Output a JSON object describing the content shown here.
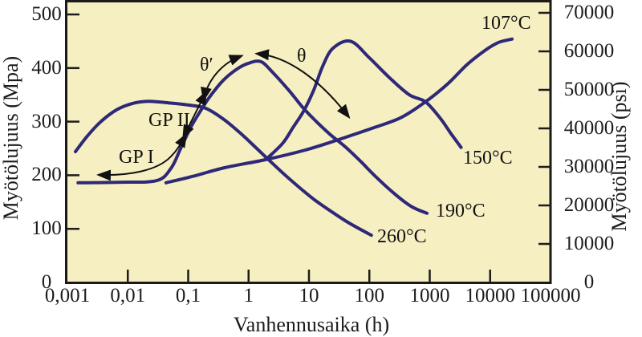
{
  "chart_data": {
    "type": "line",
    "x_scale": "log",
    "xlabel": "Vanhennusaika (h)",
    "ylabel_left": "Myötölujuus (Mpa)",
    "ylabel_right": "Myötölujuus (psi)",
    "xlim": [
      0.001,
      100000
    ],
    "ylim_left_mpa": [
      0,
      500
    ],
    "ylim_right_psi": [
      0,
      70000
    ],
    "grid": false,
    "plot_bg_color": "#f6efc2",
    "curve_color": "#2e2878",
    "x_tick_values": [
      0.001,
      0.01,
      0.1,
      1,
      10,
      100,
      1000,
      10000,
      100000
    ],
    "x_tick_labels": [
      "0,001",
      "0,01",
      "0,1",
      "1",
      "10",
      "100",
      "1000",
      "10000",
      "100000"
    ],
    "y_left_tick_values": [
      0,
      100,
      200,
      300,
      400,
      500
    ],
    "y_left_tick_labels": [
      "0",
      "100",
      "200",
      "300",
      "400",
      "500"
    ],
    "y_right_tick_values": [
      0,
      10000,
      20000,
      30000,
      40000,
      50000,
      60000,
      70000
    ],
    "y_right_tick_labels": [
      "0",
      "10000",
      "20000",
      "30000",
      "40000",
      "50000",
      "60000",
      "70000"
    ],
    "series": [
      {
        "name": "107°C",
        "x": [
          0.043,
          0.12,
          0.4,
          1.9,
          8.7,
          34,
          128,
          340,
          850,
          2000,
          4200,
          8500,
          14000,
          23000
        ],
        "y_mpa": [
          186,
          198,
          214,
          229,
          247,
          268,
          290,
          308,
          337,
          371,
          407,
          434,
          448,
          454
        ]
      },
      {
        "name": "150°C",
        "x": [
          2.1,
          3.7,
          5.5,
          8.2,
          12,
          17,
          25,
          49,
          100,
          215,
          460,
          850,
          1500,
          2300,
          3300
        ],
        "y_mpa": [
          233,
          260,
          290,
          320,
          359,
          404,
          437,
          450,
          419,
          382,
          350,
          337,
          306,
          276,
          252
        ]
      },
      {
        "name": "190°C",
        "x": [
          0.0015,
          0.0075,
          0.03,
          0.052,
          0.075,
          0.111,
          0.16,
          0.23,
          0.38,
          0.64,
          1.0,
          1.6,
          2.5,
          4.6,
          8.1,
          13.6,
          23,
          40,
          73,
          134,
          264,
          490,
          900
        ],
        "y_mpa": [
          186,
          187,
          190,
          213,
          250,
          290,
          320,
          347,
          377,
          398,
          409,
          412,
          392,
          359,
          325,
          299,
          275,
          253,
          225,
          195,
          165,
          142,
          129
        ]
      },
      {
        "name": "260°C",
        "x": [
          0.00136,
          0.0021,
          0.0035,
          0.0065,
          0.012,
          0.022,
          0.047,
          0.101,
          0.194,
          0.38,
          0.74,
          1.28,
          2.05,
          3.7,
          6.8,
          12.4,
          23,
          46,
          108
        ],
        "y_mpa": [
          244,
          272,
          299,
          322,
          334,
          338,
          335,
          331,
          325,
          305,
          278,
          253,
          231,
          204,
          178,
          154,
          133,
          111,
          88
        ]
      }
    ],
    "annotations": [
      {
        "label": "GP I",
        "kind": "phase-region-arrow"
      },
      {
        "label": "GP II",
        "kind": "phase-region-arrow"
      },
      {
        "label": "θ′",
        "kind": "phase-region-arrow"
      },
      {
        "label": "θ",
        "kind": "phase-region-arrow"
      }
    ]
  },
  "labels": {
    "gp1": "GP I",
    "gp2": "GP II",
    "theta_prime": "θ′",
    "theta": "θ"
  }
}
